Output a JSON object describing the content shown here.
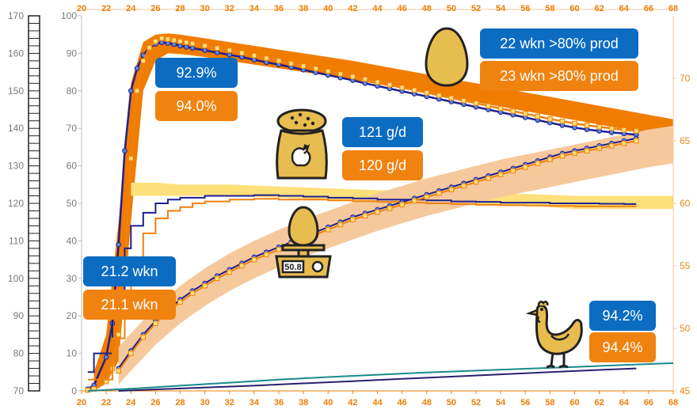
{
  "chart_data": {
    "type": "line",
    "x_axis": {
      "min": 20,
      "max": 68,
      "ticks": [
        20,
        22,
        24,
        26,
        28,
        30,
        32,
        34,
        36,
        38,
        40,
        42,
        44,
        46,
        48,
        50,
        52,
        54,
        56,
        58,
        60,
        62,
        64,
        66,
        68
      ]
    },
    "y_axis_left_outer": {
      "min": 70,
      "max": 170,
      "ticks": [
        70,
        80,
        90,
        100,
        110,
        120,
        130,
        140,
        150,
        160,
        170
      ]
    },
    "y_axis_left_inner": {
      "min": 0,
      "max": 100,
      "ticks": [
        0,
        10,
        20,
        30,
        40,
        50,
        60,
        70,
        80,
        90,
        100
      ]
    },
    "y_axis_right": {
      "min": 45,
      "max": 75,
      "ticks": [
        45,
        50,
        55,
        60,
        65,
        70
      ]
    },
    "series": [
      {
        "key": "production_blue",
        "axis": "inner",
        "color": "#1f1f8f",
        "marker": "circle",
        "x": [
          20.5,
          21,
          22,
          22.5,
          23,
          23.5,
          24,
          24.5,
          25,
          25.5,
          26,
          26.5,
          27,
          27.5,
          28,
          28.5,
          29,
          30,
          31,
          32,
          33,
          34,
          35,
          36,
          37,
          38,
          39,
          40,
          41,
          42,
          43,
          44,
          45,
          46,
          47,
          48,
          49,
          50,
          51,
          52,
          53,
          54,
          55,
          56,
          57,
          58,
          59,
          60,
          61,
          62,
          63,
          64,
          65
        ],
        "y": [
          0.5,
          1.5,
          9,
          18,
          39,
          64,
          80,
          86,
          89.5,
          91.5,
          92.5,
          92.9,
          92.7,
          92.4,
          92,
          91.7,
          91.4,
          90.8,
          90.2,
          89.6,
          89,
          88.3,
          87.6,
          87,
          86.3,
          85.6,
          84.9,
          84.2,
          83.5,
          82.8,
          82,
          81.3,
          80.6,
          79.9,
          79.2,
          78.5,
          77.8,
          77.1,
          76.4,
          75.7,
          75,
          74.3,
          73.6,
          72.9,
          72.2,
          71.5,
          70.8,
          70.2,
          69.7,
          69.3,
          68.9,
          68.6,
          68.3
        ]
      },
      {
        "key": "production_orange",
        "axis": "inner",
        "color": "#f0820f",
        "marker": "square",
        "x": [
          20.5,
          21,
          22,
          22.5,
          23,
          23.5,
          24,
          24.5,
          25,
          25.5,
          26,
          26.5,
          27,
          27.5,
          28,
          28.5,
          29,
          30,
          31,
          32,
          33,
          34,
          35,
          36,
          37,
          38,
          39,
          40,
          41,
          42,
          43,
          44,
          45,
          46,
          47,
          48,
          49,
          50,
          51,
          52,
          53,
          54,
          55,
          56,
          57,
          58,
          59,
          60,
          61,
          62,
          63,
          64,
          65
        ],
        "y": [
          0.2,
          0.5,
          2.5,
          6,
          15,
          34,
          62,
          80,
          88,
          91.5,
          93.2,
          94,
          93.8,
          93.5,
          93.2,
          92.9,
          92.6,
          92,
          91.4,
          90.8,
          90.1,
          89.4,
          88.7,
          88,
          87.3,
          86.6,
          85.9,
          85.2,
          84.5,
          83.8,
          83.1,
          82.3,
          81.6,
          80.9,
          80.2,
          79.5,
          78.8,
          78.1,
          77.4,
          76.7,
          76,
          75.3,
          74.6,
          73.9,
          73.2,
          72.5,
          71.9,
          71.3,
          70.8,
          70.4,
          70,
          69.6,
          69.3
        ]
      },
      {
        "key": "feed_blue",
        "axis": "inner",
        "color": "#1f1f8f",
        "marker": "none",
        "x": [
          20.5,
          21,
          22,
          22.5,
          23,
          23.5,
          24,
          25,
          26,
          27,
          28,
          29,
          30,
          32,
          34,
          36,
          38,
          40,
          42,
          44,
          46,
          48,
          50,
          52,
          54,
          56,
          58,
          60,
          62,
          64,
          65
        ],
        "y": [
          5,
          10,
          10,
          26,
          26,
          38,
          44,
          47.5,
          50,
          51,
          51.5,
          51.5,
          52,
          52,
          52.2,
          52,
          51.8,
          51.5,
          51.3,
          51,
          51,
          50.8,
          50.5,
          50.4,
          50.2,
          50.2,
          50,
          50,
          49.9,
          49.8,
          49.8
        ]
      },
      {
        "key": "feed_orange",
        "axis": "inner",
        "color": "#f0820f",
        "marker": "none",
        "x": [
          20.5,
          21,
          22,
          22.5,
          23,
          23.5,
          24,
          25,
          26,
          27,
          28,
          29,
          30,
          32,
          34,
          36,
          38,
          40,
          42,
          44,
          46,
          48,
          50,
          52,
          54,
          56,
          58,
          60,
          62,
          64,
          65
        ],
        "y": [
          3,
          3,
          3,
          14,
          14,
          20,
          30,
          42,
          46,
          48,
          49,
          50,
          50.5,
          51,
          51.2,
          51,
          51,
          50.8,
          50.6,
          50.4,
          50.2,
          50,
          49.8,
          49.6,
          49.5,
          49.4,
          49.3,
          49.2,
          49.2,
          49.2,
          49.2
        ]
      },
      {
        "key": "egg_weight_blue",
        "axis": "right",
        "color": "#1f1f8f",
        "marker": "circle",
        "x": [
          23,
          24,
          25,
          26,
          27,
          28,
          29,
          30,
          31,
          32,
          33,
          34,
          35,
          36,
          37,
          38,
          39,
          40,
          41,
          42,
          43,
          44,
          45,
          46,
          47,
          48,
          49,
          50,
          51,
          52,
          53,
          54,
          55,
          56,
          57,
          58,
          59,
          60,
          61,
          62,
          63,
          64,
          65
        ],
        "y": [
          46.8,
          48.2,
          49.5,
          50.6,
          51.5,
          52.3,
          53,
          53.6,
          54.2,
          54.7,
          55.2,
          55.7,
          56.1,
          56.5,
          56.9,
          57.3,
          57.7,
          58.1,
          58.5,
          58.9,
          59.2,
          59.5,
          59.8,
          60.1,
          60.4,
          60.7,
          61,
          61.3,
          61.6,
          61.9,
          62.2,
          62.5,
          62.8,
          63.1,
          63.4,
          63.7,
          64,
          64.2,
          64.4,
          64.6,
          64.8,
          65,
          65.2
        ]
      },
      {
        "key": "egg_weight_orange",
        "axis": "right",
        "color": "#f0820f",
        "marker": "square",
        "x": [
          23,
          24,
          25,
          26,
          27,
          28,
          29,
          30,
          31,
          32,
          33,
          34,
          35,
          36,
          37,
          38,
          39,
          40,
          41,
          42,
          43,
          44,
          45,
          46,
          47,
          48,
          49,
          50,
          51,
          52,
          53,
          54,
          55,
          56,
          57,
          58,
          59,
          60,
          61,
          62,
          63,
          64,
          65
        ],
        "y": [
          46.6,
          48,
          49.3,
          50.4,
          51.3,
          52.1,
          52.8,
          53.4,
          54,
          54.5,
          55,
          55.5,
          55.9,
          56.3,
          56.7,
          57.1,
          57.5,
          57.9,
          58.3,
          58.7,
          59,
          59.3,
          59.6,
          59.9,
          60.2,
          60.5,
          60.8,
          61.1,
          61.4,
          61.7,
          62,
          62.3,
          62.6,
          62.9,
          63.2,
          63.5,
          63.8,
          64,
          64.2,
          64.4,
          64.6,
          64.8,
          65
        ]
      },
      {
        "key": "mortality_navy",
        "axis": "inner",
        "color": "#2a1f6e",
        "marker": "none",
        "x": [
          23,
          26,
          30,
          34,
          38,
          42,
          46,
          50,
          54,
          58,
          62,
          65
        ],
        "y": [
          0,
          0.4,
          0.9,
          1.4,
          2,
          2.6,
          3.2,
          3.8,
          4.4,
          5,
          5.6,
          6
        ]
      },
      {
        "key": "mortality_teal",
        "axis": "inner",
        "color": "#1a8a8a",
        "marker": "none",
        "x": [
          20.5,
          24,
          28,
          32,
          36,
          40,
          44,
          48,
          52,
          56,
          60,
          64,
          68
        ],
        "y": [
          0,
          0.6,
          1.4,
          2.2,
          3,
          3.7,
          4.3,
          4.9,
          5.4,
          5.9,
          6.4,
          6.9,
          7.4
        ]
      }
    ],
    "standard_bands": [
      {
        "key": "production_standard",
        "axis": "inner",
        "color": "#f07c00",
        "x": [
          21,
          22,
          23,
          24,
          25,
          26,
          27,
          28,
          30,
          32,
          34,
          36,
          38,
          40,
          42,
          44,
          46,
          48,
          50,
          52,
          54,
          56,
          58,
          60,
          62,
          64,
          66,
          68
        ],
        "upper": [
          5,
          15,
          45,
          82,
          93,
          95,
          95.3,
          95,
          94,
          93,
          92,
          91,
          90,
          89,
          88,
          86.8,
          85.6,
          84.4,
          83.2,
          82,
          80.8,
          79.6,
          78.4,
          77.2,
          76,
          74.8,
          73.6,
          72.4
        ],
        "lower": [
          0,
          2,
          8,
          45,
          80,
          88,
          90,
          89.8,
          89,
          88,
          87,
          86,
          85,
          84,
          83,
          81.8,
          80.6,
          79.4,
          78.2,
          77,
          75.8,
          74.6,
          73.4,
          72.2,
          71,
          69.8,
          68.6,
          67.4
        ]
      },
      {
        "key": "feed_standard",
        "axis": "inner",
        "color": "#fde07a",
        "x": [
          24,
          26,
          28,
          32,
          36,
          40,
          44,
          48,
          52,
          56,
          60,
          64,
          68
        ],
        "upper": [
          55.5,
          55.5,
          55,
          55,
          54.5,
          54,
          53.5,
          53.5,
          52.5,
          52.5,
          52,
          52,
          52
        ],
        "lower": [
          52,
          52,
          52,
          52,
          51.5,
          51,
          50.5,
          50.5,
          49.5,
          49.5,
          48.5,
          48.5,
          48.5
        ]
      },
      {
        "key": "egg_weight_standard",
        "axis": "right",
        "color": "#f6c99c",
        "x": [
          23,
          24,
          26,
          28,
          30,
          32,
          34,
          36,
          38,
          40,
          42,
          44,
          46,
          48,
          50,
          52,
          54,
          56,
          58,
          60,
          62,
          64,
          66,
          68
        ],
        "upper": [
          48.5,
          49.6,
          51.7,
          53.4,
          54.8,
          56,
          57,
          57.9,
          58.7,
          59.4,
          60.1,
          60.8,
          61.4,
          62,
          62.5,
          63,
          63.5,
          63.9,
          64.3,
          64.7,
          65.1,
          65.5,
          65.9,
          66.2
        ],
        "lower": [
          45.5,
          46.6,
          48.7,
          50.4,
          51.8,
          53,
          54,
          54.9,
          55.7,
          56.4,
          57.1,
          57.8,
          58.4,
          59,
          59.5,
          60,
          60.5,
          60.9,
          61.3,
          61.7,
          62.1,
          62.5,
          62.9,
          63.2
        ]
      }
    ]
  },
  "callouts": {
    "prod80_blue": "22 wkn >80% prod",
    "prod80_orange": "23 wkn >80% prod",
    "peak_blue": "92.9%",
    "peak_orange": "94.0%",
    "feed_blue": "121 g/d",
    "feed_orange": "120 g/d",
    "age_blue": "21.2 wkn",
    "age_orange": "21.1 wkn",
    "liv_blue": "94.2%",
    "liv_orange": "94.4%",
    "scale_display": "50.8"
  },
  "colors": {
    "blue": "#0b6cc2",
    "orange": "#f0820f",
    "navy": "#1f1f8f",
    "teal": "#1a8a8a",
    "gold": "#e8bd4f",
    "icon_outline": "#222222"
  },
  "icons": [
    "egg-icon",
    "feed-bag-icon",
    "egg-scale-icon",
    "chicken-icon"
  ]
}
